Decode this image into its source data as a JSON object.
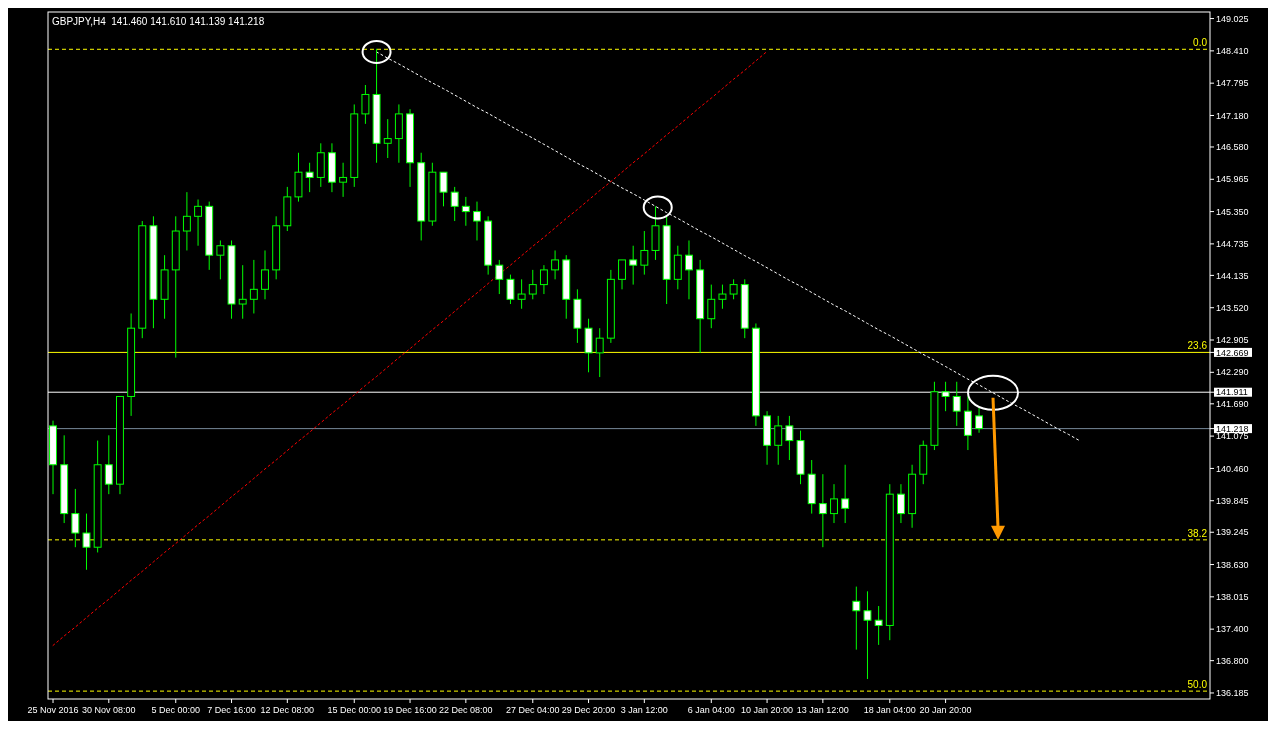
{
  "chart_data": {
    "type": "candlestick",
    "title": "GBPJPY,H4  141.460 141.610 141.139 141.218",
    "color": "#00ff00",
    "categories": [
      "25 Nov 2016",
      null,
      null,
      null,
      null,
      "30 Nov 08:00",
      null,
      null,
      null,
      null,
      null,
      "5 Dec 00:00",
      null,
      null,
      null,
      null,
      "7 Dec 16:00",
      null,
      null,
      null,
      null,
      "12 Dec 08:00",
      null,
      null,
      null,
      null,
      null,
      "15 Dec 00:00",
      null,
      null,
      null,
      null,
      "19 Dec 16:00",
      null,
      null,
      null,
      null,
      "22 Dec 08:00",
      null,
      null,
      null,
      null,
      null,
      "27 Dec 04:00",
      null,
      null,
      null,
      null,
      "29 Dec 20:00",
      null,
      null,
      null,
      null,
      "3 Jan 12:00",
      null,
      null,
      null,
      null,
      null,
      "6 Jan 04:00",
      null,
      null,
      null,
      null,
      "10 Jan 20:00",
      null,
      null,
      null,
      null,
      "13 Jan 12:00",
      null,
      null,
      null,
      null,
      null,
      "18 Jan 04:00",
      null,
      null,
      null,
      null,
      "20 Jan 20:00",
      null,
      null,
      null,
      null,
      null,
      null,
      null,
      null,
      null,
      null,
      null,
      null,
      null,
      null,
      null,
      null,
      null,
      null,
      null,
      null,
      null,
      null,
      null
    ],
    "ohlc": [
      [
        141.27,
        141.37,
        139.97,
        140.53
      ],
      [
        140.53,
        141.09,
        139.42,
        139.6
      ],
      [
        139.6,
        140.07,
        138.96,
        139.23
      ],
      [
        139.23,
        139.6,
        138.53,
        138.96
      ],
      [
        138.96,
        140.99,
        138.86,
        140.53
      ],
      [
        140.53,
        141.09,
        139.97,
        140.16
      ],
      [
        140.16,
        141.83,
        139.97,
        141.83
      ],
      [
        141.83,
        143.41,
        141.46,
        143.13
      ],
      [
        143.13,
        145.17,
        142.94,
        145.08
      ],
      [
        145.08,
        145.26,
        143.13,
        143.68
      ],
      [
        143.68,
        144.52,
        143.31,
        144.24
      ],
      [
        144.24,
        145.26,
        142.57,
        144.98
      ],
      [
        144.98,
        145.72,
        144.61,
        145.26
      ],
      [
        145.26,
        145.58,
        144.7,
        145.45
      ],
      [
        145.45,
        145.54,
        144.24,
        144.52
      ],
      [
        144.52,
        144.8,
        144.06,
        144.7
      ],
      [
        144.7,
        144.8,
        143.31,
        143.59
      ],
      [
        143.59,
        144.33,
        143.31,
        143.68
      ],
      [
        143.68,
        144.43,
        143.41,
        143.87
      ],
      [
        143.87,
        144.61,
        143.68,
        144.24
      ],
      [
        144.24,
        145.26,
        144.06,
        145.08
      ],
      [
        145.08,
        145.82,
        144.98,
        145.63
      ],
      [
        145.63,
        146.47,
        145.54,
        146.1
      ],
      [
        146.1,
        146.28,
        145.72,
        146.0
      ],
      [
        146.0,
        146.65,
        145.82,
        146.47
      ],
      [
        146.47,
        146.65,
        145.72,
        145.91
      ],
      [
        145.91,
        146.28,
        145.63,
        146.0
      ],
      [
        146.0,
        147.39,
        145.82,
        147.21
      ],
      [
        147.21,
        147.76,
        147.02,
        147.58
      ],
      [
        147.58,
        148.45,
        146.28,
        146.65
      ],
      [
        146.65,
        147.11,
        146.37,
        146.74
      ],
      [
        146.74,
        147.39,
        146.28,
        147.21
      ],
      [
        147.21,
        147.3,
        145.82,
        146.28
      ],
      [
        146.28,
        146.47,
        144.8,
        145.17
      ],
      [
        145.17,
        146.28,
        145.08,
        146.1
      ],
      [
        146.1,
        146.1,
        145.45,
        145.72
      ],
      [
        145.72,
        145.82,
        145.17,
        145.45
      ],
      [
        145.45,
        145.63,
        145.08,
        145.35
      ],
      [
        145.35,
        145.54,
        144.8,
        145.17
      ],
      [
        145.17,
        145.26,
        144.15,
        144.33
      ],
      [
        144.33,
        144.43,
        143.78,
        144.06
      ],
      [
        144.06,
        144.15,
        143.59,
        143.68
      ],
      [
        143.68,
        144.06,
        143.5,
        143.78
      ],
      [
        143.78,
        144.24,
        143.68,
        143.96
      ],
      [
        143.96,
        144.33,
        143.78,
        144.24
      ],
      [
        144.24,
        144.61,
        144.06,
        144.43
      ],
      [
        144.43,
        144.52,
        143.31,
        143.68
      ],
      [
        143.68,
        143.87,
        142.85,
        143.13
      ],
      [
        143.13,
        143.31,
        142.29,
        142.66
      ],
      [
        142.66,
        143.13,
        142.2,
        142.94
      ],
      [
        142.94,
        144.24,
        142.85,
        144.06
      ],
      [
        144.06,
        144.43,
        143.87,
        144.43
      ],
      [
        144.43,
        144.7,
        143.96,
        144.33
      ],
      [
        144.33,
        144.98,
        144.15,
        144.61
      ],
      [
        144.61,
        145.45,
        144.43,
        145.08
      ],
      [
        145.08,
        145.26,
        143.59,
        144.06
      ],
      [
        144.06,
        144.7,
        143.87,
        144.52
      ],
      [
        144.52,
        144.8,
        143.68,
        144.24
      ],
      [
        144.24,
        144.43,
        142.66,
        143.31
      ],
      [
        143.31,
        143.96,
        143.13,
        143.68
      ],
      [
        143.68,
        143.96,
        143.5,
        143.78
      ],
      [
        143.78,
        144.06,
        143.68,
        143.96
      ],
      [
        143.96,
        144.06,
        142.94,
        143.13
      ],
      [
        143.13,
        143.22,
        141.27,
        141.46
      ],
      [
        141.46,
        141.55,
        140.53,
        140.9
      ],
      [
        140.9,
        141.46,
        140.53,
        141.27
      ],
      [
        141.27,
        141.46,
        140.62,
        140.99
      ],
      [
        140.99,
        141.18,
        140.16,
        140.35
      ],
      [
        140.35,
        140.62,
        139.6,
        139.79
      ],
      [
        139.79,
        140.35,
        138.96,
        139.6
      ],
      [
        139.6,
        140.16,
        139.42,
        139.88
      ],
      [
        139.88,
        140.53,
        139.42,
        139.7
      ],
      [
        137.93,
        138.21,
        137.01,
        137.75
      ],
      [
        137.75,
        138.12,
        136.45,
        137.57
      ],
      [
        137.57,
        137.84,
        137.1,
        137.47
      ],
      [
        137.47,
        140.16,
        137.19,
        139.97
      ],
      [
        139.97,
        140.16,
        139.42,
        139.6
      ],
      [
        139.6,
        140.53,
        139.33,
        140.35
      ],
      [
        140.35,
        140.99,
        140.16,
        140.9
      ],
      [
        140.9,
        142.11,
        140.81,
        141.92
      ],
      [
        141.92,
        142.11,
        141.55,
        141.83
      ],
      [
        141.83,
        142.11,
        141.27,
        141.55
      ],
      [
        141.55,
        141.83,
        140.81,
        141.09
      ],
      [
        141.46,
        141.61,
        141.139,
        141.218
      ],
      null,
      null,
      null,
      null,
      null,
      null,
      null,
      null,
      null,
      null,
      null,
      null,
      null,
      null,
      null,
      null,
      null,
      null,
      null,
      null
    ],
    "series": [
      {
        "type": "line",
        "color": "#ffffff",
        "line_style": "dotted",
        "values": [
          null,
          null,
          null,
          null,
          null,
          null,
          null,
          null,
          null,
          null,
          null,
          null,
          null,
          null,
          null,
          null,
          null,
          null,
          null,
          null,
          null,
          null,
          null,
          null,
          null,
          null,
          null,
          null,
          null,
          148.39,
          148.27,
          148.16,
          148.04,
          147.92,
          147.8,
          147.69,
          147.57,
          147.45,
          147.33,
          147.22,
          147.1,
          146.98,
          146.86,
          146.75,
          146.63,
          146.51,
          146.39,
          146.27,
          146.16,
          146.04,
          145.92,
          145.8,
          145.69,
          145.57,
          145.45,
          145.33,
          145.22,
          145.1,
          144.98,
          144.87,
          144.75,
          144.63,
          144.51,
          144.4,
          144.28,
          144.16,
          144.04,
          143.93,
          143.81,
          143.69,
          143.57,
          143.46,
          143.34,
          143.22,
          143.1,
          142.99,
          142.87,
          142.75,
          142.63,
          142.52,
          142.4,
          142.28,
          142.16,
          142.05,
          141.93,
          141.81,
          141.69,
          141.58,
          141.46,
          141.34,
          141.22,
          141.11,
          140.99,
          null,
          null,
          null,
          null,
          null,
          null,
          null,
          null,
          null,
          null,
          null
        ]
      },
      {
        "type": "line",
        "color": "#ff0000",
        "line_style": "dotted",
        "values": [
          137.09,
          137.27,
          137.44,
          137.62,
          137.8,
          137.97,
          138.15,
          138.33,
          138.5,
          138.68,
          138.86,
          139.03,
          139.21,
          139.39,
          139.56,
          139.74,
          139.92,
          140.09,
          140.27,
          140.45,
          140.62,
          140.8,
          140.98,
          141.15,
          141.33,
          141.51,
          141.68,
          141.86,
          142.04,
          142.21,
          142.39,
          142.57,
          142.74,
          142.92,
          143.1,
          143.27,
          143.45,
          143.63,
          143.8,
          143.98,
          144.16,
          144.33,
          144.51,
          144.69,
          144.86,
          145.04,
          145.22,
          145.39,
          145.57,
          145.75,
          145.92,
          146.1,
          146.28,
          146.45,
          146.63,
          146.81,
          146.98,
          147.16,
          147.34,
          147.51,
          147.69,
          147.87,
          148.04,
          148.22,
          148.4,
          null,
          null,
          null,
          null,
          null,
          null,
          null,
          null,
          null,
          null,
          null,
          null,
          null,
          null,
          null,
          null,
          null,
          null,
          null,
          null,
          null,
          null,
          null,
          null,
          null,
          null,
          null,
          null,
          null,
          null,
          null,
          null,
          null,
          null,
          null,
          null,
          null,
          null,
          null
        ]
      }
    ],
    "ylim": [
      136.07,
      149.15
    ],
    "yticks": [
      {
        "value": 149.025,
        "label": "149.025"
      },
      {
        "value": 148.41,
        "label": "148.410"
      },
      {
        "value": 147.795,
        "label": "147.795"
      },
      {
        "value": 147.18,
        "label": "147.180"
      },
      {
        "value": 146.58,
        "label": "146.580"
      },
      {
        "value": 145.965,
        "label": "145.965"
      },
      {
        "value": 145.35,
        "label": "145.350"
      },
      {
        "value": 144.735,
        "label": "144.735"
      },
      {
        "value": 144.135,
        "label": "144.135"
      },
      {
        "value": 143.52,
        "label": "143.520"
      },
      {
        "value": 142.905,
        "label": "142.905"
      },
      {
        "value": 142.669,
        "label": "142.669"
      },
      {
        "value": 142.29,
        "label": "142.290"
      },
      {
        "value": 141.911,
        "label": "141.911"
      },
      {
        "value": 141.69,
        "label": "141.690"
      },
      {
        "value": 141.218,
        "label": "141.218"
      },
      {
        "value": 141.075,
        "label": "141.075"
      },
      {
        "value": 140.46,
        "label": "140.460"
      },
      {
        "value": 139.845,
        "label": "139.845"
      },
      {
        "value": 139.245,
        "label": "139.245"
      },
      {
        "value": 138.63,
        "label": "138.630"
      },
      {
        "value": 138.015,
        "label": "138.015"
      },
      {
        "value": 137.4,
        "label": "137.400"
      },
      {
        "value": 136.8,
        "label": "136.800"
      },
      {
        "value": 136.185,
        "label": "136.185"
      }
    ],
    "ref_lines": [
      {
        "axis": "y",
        "value": 148.44,
        "color": "#ffff00",
        "line_style": "dashed"
      },
      {
        "axis": "y",
        "value": 142.669,
        "color": "#ffff00",
        "line_style": "solid"
      },
      {
        "axis": "y",
        "value": 139.1,
        "color": "#ffff00",
        "line_style": "dashed"
      },
      {
        "axis": "y",
        "value": 136.22,
        "color": "#ffff00",
        "line_style": "dashed"
      },
      {
        "axis": "y",
        "value": 141.911,
        "color": "#ffffff",
        "line_style": "solid"
      },
      {
        "axis": "y",
        "value": 141.218,
        "color": "#778899",
        "line_style": "solid"
      }
    ],
    "annotations": [
      {
        "text": "0.0",
        "y": 148.44
      },
      {
        "text": "23.6",
        "y": 142.669
      },
      {
        "text": "38.2",
        "y": 139.1
      },
      {
        "text": "50.0",
        "y": 136.22
      }
    ]
  }
}
